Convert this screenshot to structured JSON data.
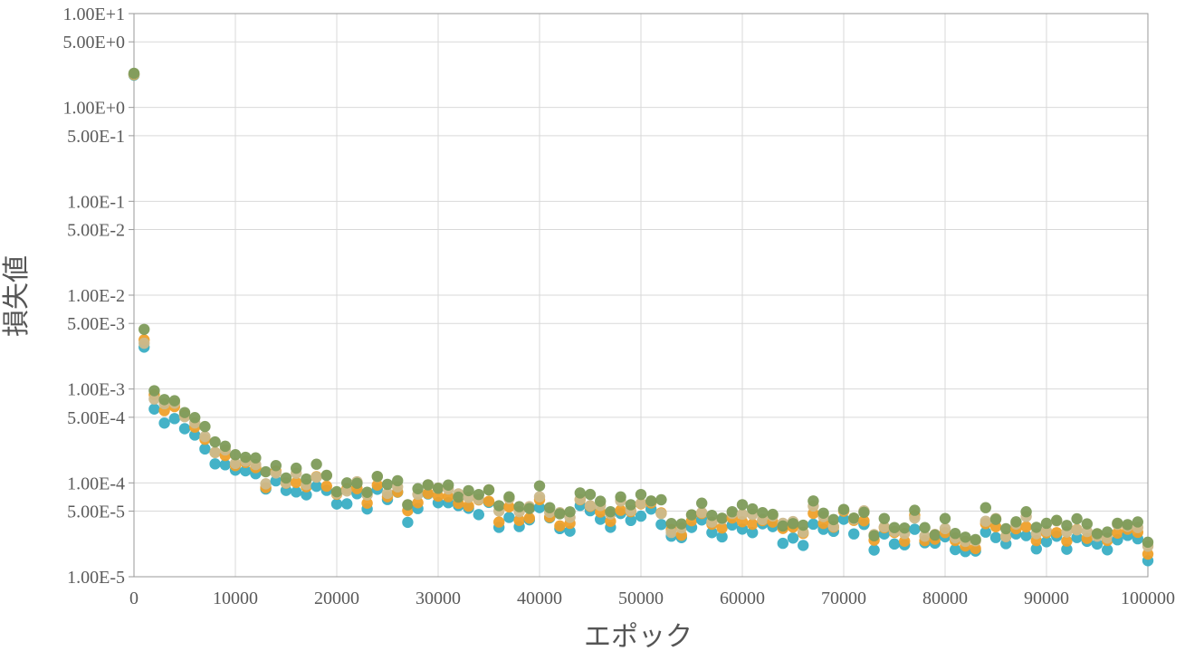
{
  "chart_data": {
    "type": "scatter",
    "title": "",
    "xlabel": "エポック",
    "ylabel": "損失値",
    "xlim": [
      0,
      100000
    ],
    "ylim": [
      1e-05,
      10
    ],
    "y_scale": "log",
    "grid": true,
    "legend": "none",
    "x_ticks": [
      0,
      10000,
      20000,
      30000,
      40000,
      50000,
      60000,
      70000,
      80000,
      90000,
      100000
    ],
    "x_tick_labels": [
      "0",
      "10000",
      "20000",
      "30000",
      "40000",
      "50000",
      "60000",
      "70000",
      "80000",
      "90000",
      "100000"
    ],
    "y_ticks": [
      10,
      5,
      1,
      0.5,
      0.1,
      0.05,
      0.01,
      0.005,
      0.001,
      0.0005,
      0.0001,
      5e-05,
      1e-05
    ],
    "y_tick_labels": [
      "1.00E+1",
      "5.00E+0",
      "1.00E+0",
      "5.00E-1",
      "1.00E-1",
      "5.00E-2",
      "1.00E-2",
      "5.00E-3",
      "1.00E-3",
      "5.00E-4",
      "1.00E-4",
      "5.00E-5",
      "1.00E-5"
    ],
    "colors": [
      "#3aaec4",
      "#efa02a",
      "#cbb98c",
      "#7e9b5a"
    ],
    "anchors": [
      {
        "x": 0,
        "y": 2.3
      },
      {
        "x": 1000,
        "y": 0.0035
      },
      {
        "x": 2000,
        "y": 0.0011
      },
      {
        "x": 3000,
        "y": 0.0009
      },
      {
        "x": 5000,
        "y": 0.00045
      },
      {
        "x": 8000,
        "y": 0.00025
      },
      {
        "x": 10000,
        "y": 0.0002
      },
      {
        "x": 15000,
        "y": 0.00012
      },
      {
        "x": 20000,
        "y": 0.0001
      },
      {
        "x": 25000,
        "y": 8e-05
      },
      {
        "x": 30000,
        "y": 7.2e-05
      },
      {
        "x": 40000,
        "y": 6e-05
      },
      {
        "x": 50000,
        "y": 5e-05
      },
      {
        "x": 60000,
        "y": 4.2e-05
      },
      {
        "x": 70000,
        "y": 3.8e-05
      },
      {
        "x": 80000,
        "y": 3.5e-05
      },
      {
        "x": 90000,
        "y": 3.4e-05
      },
      {
        "x": 100000,
        "y": 3.1e-05
      }
    ],
    "series_factors": [
      0.72,
      0.85,
      0.95,
      1.08
    ],
    "x_step": 1000,
    "seed": 7
  }
}
